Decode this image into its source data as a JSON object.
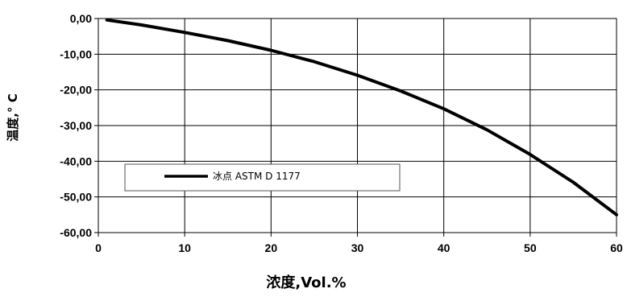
{
  "chart_data": {
    "type": "line",
    "title": "",
    "xlabel": "浓度,Vol.%",
    "ylabel": "温度,° C",
    "xlim": [
      0,
      60
    ],
    "ylim": [
      -60,
      0
    ],
    "x_ticks": [
      0,
      10,
      20,
      30,
      40,
      50,
      60
    ],
    "y_ticks": [
      0,
      -10,
      -20,
      -30,
      -40,
      -50,
      -60
    ],
    "x_tick_labels": [
      "0",
      "10",
      "20",
      "30",
      "40",
      "50",
      "60"
    ],
    "y_tick_labels": [
      "0,00",
      "-10,00",
      "-20,00",
      "-30,00",
      "-40,00",
      "-50,00",
      "-60,00"
    ],
    "grid": true,
    "legend_position": "left-middle",
    "series": [
      {
        "name": "冰点 ASTM D 1177",
        "color": "#000000",
        "x": [
          1,
          5,
          10,
          15,
          20,
          25,
          30,
          35,
          40,
          45,
          50,
          55,
          60
        ],
        "y": [
          -0.4,
          -1.8,
          -3.9,
          -6.2,
          -8.9,
          -12.1,
          -15.9,
          -20.3,
          -25.3,
          -31.2,
          -38.1,
          -45.9,
          -55.0
        ]
      }
    ]
  }
}
